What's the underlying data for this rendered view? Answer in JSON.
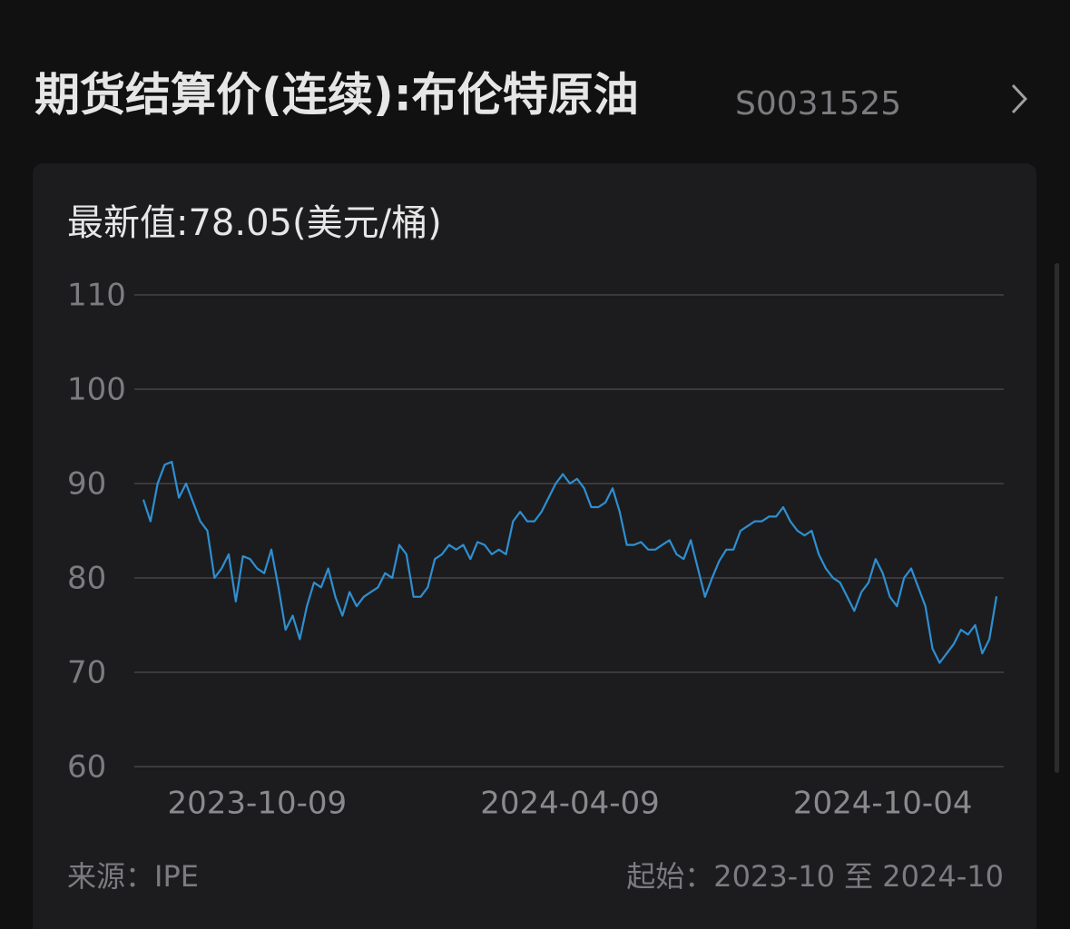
{
  "header": {
    "title": "期货结算价(连续):布伦特原油",
    "code": "S0031525"
  },
  "chart_data": {
    "type": "line",
    "subtitle": "最新值:78.05(美元/桶)",
    "categories": [
      null,
      null,
      null,
      null,
      null,
      null,
      null,
      null,
      null,
      null,
      null,
      null,
      null,
      null,
      null,
      null,
      "2023-10-09",
      null,
      null,
      null,
      null,
      null,
      null,
      null,
      null,
      null,
      null,
      null,
      null,
      null,
      null,
      null,
      null,
      null,
      null,
      null,
      null,
      null,
      null,
      null,
      null,
      null,
      null,
      null,
      null,
      null,
      null,
      null,
      null,
      null,
      null,
      null,
      null,
      null,
      null,
      null,
      null,
      null,
      null,
      null,
      "2024-04-09",
      null,
      null,
      null,
      null,
      null,
      null,
      null,
      null,
      null,
      null,
      null,
      null,
      null,
      null,
      null,
      null,
      null,
      null,
      null,
      null,
      null,
      null,
      null,
      null,
      null,
      null,
      null,
      null,
      null,
      null,
      null,
      null,
      null,
      null,
      null,
      null,
      null,
      null,
      null,
      null,
      null,
      null,
      null,
      "2024-10-04",
      null,
      null,
      null,
      null,
      null,
      null,
      null,
      null,
      null,
      null,
      null,
      null,
      null,
      null,
      null,
      null
    ],
    "values": [
      88.3,
      86,
      90,
      92,
      92.3,
      88.5,
      90,
      88,
      86,
      85,
      80,
      81,
      82.5,
      77.5,
      82.3,
      82,
      81,
      80.5,
      83,
      79,
      74.5,
      76,
      73.5,
      77,
      79.5,
      79,
      81,
      78,
      76,
      78.5,
      77,
      78,
      78.5,
      79,
      80.5,
      80,
      83.5,
      82.5,
      78,
      78,
      79,
      82,
      82.5,
      83.5,
      83,
      83.5,
      82,
      83.8,
      83.5,
      82.5,
      83,
      82.5,
      86,
      87,
      86,
      86,
      87,
      88.5,
      90,
      91,
      90,
      90.5,
      89.5,
      87.5,
      87.5,
      88,
      89.5,
      87,
      83.5,
      83.5,
      83.8,
      83,
      83,
      83.5,
      84,
      82.5,
      82,
      84,
      81,
      78,
      80,
      81.8,
      83,
      83,
      85,
      85.5,
      86,
      86,
      86.5,
      86.5,
      87.5,
      86,
      85,
      84.5,
      85,
      82.5,
      81,
      80,
      79.5,
      78,
      76.5,
      78.5,
      79.5,
      82,
      80.5,
      78,
      77,
      80,
      81,
      79,
      77,
      72.5,
      71,
      72,
      73,
      74.5,
      74,
      75,
      72,
      73.5,
      78.05
    ],
    "color": "#2e8fd1",
    "ylim": [
      60,
      110
    ],
    "yticks": [
      60,
      70,
      80,
      90,
      100,
      110
    ],
    "grid": true
  },
  "footer": {
    "source": "来源：IPE",
    "range": "起始：2023-10 至 2024-10"
  }
}
